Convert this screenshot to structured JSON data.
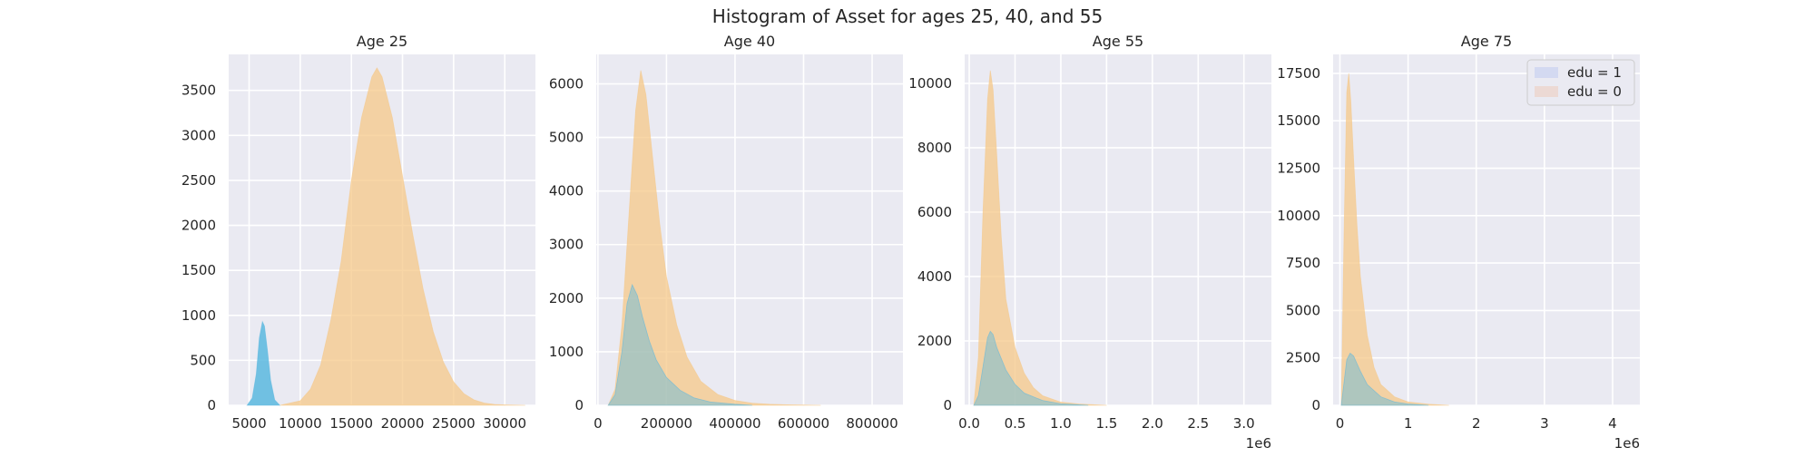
{
  "figure": {
    "title": "Histogram of Asset for ages 25, 40, and 55"
  },
  "colors": {
    "background": "#eaeaf2",
    "grid": "#ffffff",
    "edu1": "#5bb8df",
    "edu0": "#f5c888",
    "legend_edu1": "#d3d9f1",
    "legend_edu0": "#ecd9d4"
  },
  "chart_data": [
    {
      "type": "area",
      "title": "Age 25",
      "xlim": [
        3000,
        33000
      ],
      "ylim": [
        0,
        3900
      ],
      "xticks": [
        {
          "v": 5000,
          "label": "5000"
        },
        {
          "v": 10000,
          "label": "10000"
        },
        {
          "v": 15000,
          "label": "15000"
        },
        {
          "v": 20000,
          "label": "20000"
        },
        {
          "v": 25000,
          "label": "25000"
        },
        {
          "v": 30000,
          "label": "30000"
        }
      ],
      "yticks": [
        {
          "v": 0,
          "label": "0"
        },
        {
          "v": 500,
          "label": "500"
        },
        {
          "v": 1000,
          "label": "1000"
        },
        {
          "v": 1500,
          "label": "1500"
        },
        {
          "v": 2000,
          "label": "2000"
        },
        {
          "v": 2500,
          "label": "2500"
        },
        {
          "v": 3000,
          "label": "3000"
        },
        {
          "v": 3500,
          "label": "3500"
        }
      ],
      "offset_label": "",
      "series": [
        {
          "name": "edu = 0",
          "x": [
            8000,
            10000,
            11000,
            12000,
            13000,
            14000,
            15000,
            16000,
            17000,
            17500,
            18000,
            19000,
            20000,
            21000,
            22000,
            23000,
            24000,
            25000,
            26000,
            27000,
            28000,
            29000,
            30000,
            31000,
            32000
          ],
          "y": [
            0,
            50,
            180,
            450,
            950,
            1600,
            2500,
            3200,
            3650,
            3750,
            3650,
            3200,
            2550,
            1900,
            1300,
            820,
            480,
            260,
            130,
            60,
            25,
            10,
            5,
            2,
            0
          ]
        },
        {
          "name": "edu = 1",
          "x": [
            4800,
            5300,
            5700,
            6000,
            6300,
            6500,
            6800,
            7100,
            7500,
            8000
          ],
          "y": [
            0,
            80,
            350,
            750,
            930,
            880,
            600,
            280,
            60,
            0
          ]
        }
      ]
    },
    {
      "type": "area",
      "title": "Age 40",
      "xlim": [
        -5000,
        890000
      ],
      "ylim": [
        0,
        6550
      ],
      "xticks": [
        {
          "v": 0,
          "label": "0"
        },
        {
          "v": 200000,
          "label": "200000"
        },
        {
          "v": 400000,
          "label": "400000"
        },
        {
          "v": 600000,
          "label": "600000"
        },
        {
          "v": 800000,
          "label": "800000"
        }
      ],
      "yticks": [
        {
          "v": 0,
          "label": "0"
        },
        {
          "v": 1000,
          "label": "1000"
        },
        {
          "v": 2000,
          "label": "2000"
        },
        {
          "v": 3000,
          "label": "3000"
        },
        {
          "v": 4000,
          "label": "4000"
        },
        {
          "v": 5000,
          "label": "5000"
        },
        {
          "v": 6000,
          "label": "6000"
        }
      ],
      "offset_label": "",
      "series": [
        {
          "name": "edu = 0",
          "x": [
            30000,
            50000,
            70000,
            90000,
            110000,
            125000,
            140000,
            160000,
            180000,
            200000,
            230000,
            260000,
            300000,
            350000,
            400000,
            450000,
            500000,
            550000,
            600000,
            650000
          ],
          "y": [
            0,
            300,
            1500,
            3500,
            5500,
            6250,
            5800,
            4600,
            3400,
            2400,
            1500,
            900,
            450,
            200,
            90,
            40,
            20,
            10,
            5,
            0
          ]
        },
        {
          "name": "edu = 1",
          "x": [
            30000,
            50000,
            70000,
            85000,
            100000,
            115000,
            130000,
            150000,
            170000,
            200000,
            240000,
            280000,
            330000,
            400000,
            450000
          ],
          "y": [
            0,
            200,
            1000,
            1900,
            2250,
            2050,
            1650,
            1200,
            850,
            520,
            280,
            140,
            60,
            20,
            0
          ]
        }
      ]
    },
    {
      "type": "area",
      "title": "Age 55",
      "xlim": [
        -50000,
        3300000
      ],
      "ylim": [
        0,
        10900
      ],
      "xticks": [
        {
          "v": 0,
          "label": "0.0"
        },
        {
          "v": 500000,
          "label": "0.5"
        },
        {
          "v": 1000000,
          "label": "1.0"
        },
        {
          "v": 1500000,
          "label": "1.5"
        },
        {
          "v": 2000000,
          "label": "2.0"
        },
        {
          "v": 2500000,
          "label": "2.5"
        },
        {
          "v": 3000000,
          "label": "3.0"
        }
      ],
      "yticks": [
        {
          "v": 0,
          "label": "0"
        },
        {
          "v": 2000,
          "label": "2000"
        },
        {
          "v": 4000,
          "label": "4000"
        },
        {
          "v": 6000,
          "label": "6000"
        },
        {
          "v": 8000,
          "label": "8000"
        },
        {
          "v": 10000,
          "label": "10000"
        }
      ],
      "offset_label": "1e6",
      "series": [
        {
          "name": "edu = 0",
          "x": [
            50000,
            100000,
            150000,
            200000,
            230000,
            260000,
            300000,
            350000,
            400000,
            500000,
            600000,
            700000,
            800000,
            1000000,
            1200000,
            1500000
          ],
          "y": [
            0,
            1500,
            6000,
            9500,
            10400,
            9800,
            7800,
            5200,
            3300,
            1800,
            1000,
            550,
            300,
            100,
            40,
            0
          ]
        },
        {
          "name": "edu = 1",
          "x": [
            50000,
            100000,
            150000,
            200000,
            230000,
            260000,
            300000,
            400000,
            500000,
            600000,
            800000,
            1000000,
            1300000
          ],
          "y": [
            0,
            300,
            1200,
            2100,
            2300,
            2200,
            1800,
            1100,
            650,
            380,
            150,
            50,
            0
          ]
        }
      ]
    },
    {
      "type": "area",
      "title": "Age 75",
      "xlim": [
        -100000,
        4400000
      ],
      "ylim": [
        0,
        18500
      ],
      "xticks": [
        {
          "v": 0,
          "label": "0"
        },
        {
          "v": 1000000,
          "label": "1"
        },
        {
          "v": 2000000,
          "label": "2"
        },
        {
          "v": 3000000,
          "label": "3"
        },
        {
          "v": 4000000,
          "label": "4"
        }
      ],
      "yticks": [
        {
          "v": 0,
          "label": "0"
        },
        {
          "v": 2500,
          "label": "2500"
        },
        {
          "v": 5000,
          "label": "5000"
        },
        {
          "v": 7500,
          "label": "7500"
        },
        {
          "v": 10000,
          "label": "10000"
        },
        {
          "v": 12500,
          "label": "12500"
        },
        {
          "v": 15000,
          "label": "15000"
        },
        {
          "v": 17500,
          "label": "17500"
        }
      ],
      "offset_label": "1e6",
      "series": [
        {
          "name": "edu = 0",
          "x": [
            20000,
            60000,
            100000,
            130000,
            160000,
            200000,
            250000,
            300000,
            400000,
            500000,
            600000,
            800000,
            1000000,
            1300000,
            1600000
          ],
          "y": [
            0,
            9000,
            16500,
            17500,
            16000,
            13000,
            9500,
            6800,
            3700,
            2000,
            1100,
            450,
            180,
            60,
            0
          ]
        },
        {
          "name": "edu = 1",
          "x": [
            20000,
            60000,
            100000,
            150000,
            200000,
            250000,
            300000,
            400000,
            600000,
            800000,
            1000000,
            1300000
          ],
          "y": [
            0,
            1200,
            2400,
            2750,
            2600,
            2200,
            1800,
            1100,
            450,
            180,
            70,
            0
          ]
        }
      ]
    }
  ],
  "legend": {
    "items": [
      {
        "label": "edu = 1"
      },
      {
        "label": "edu = 0"
      }
    ]
  }
}
